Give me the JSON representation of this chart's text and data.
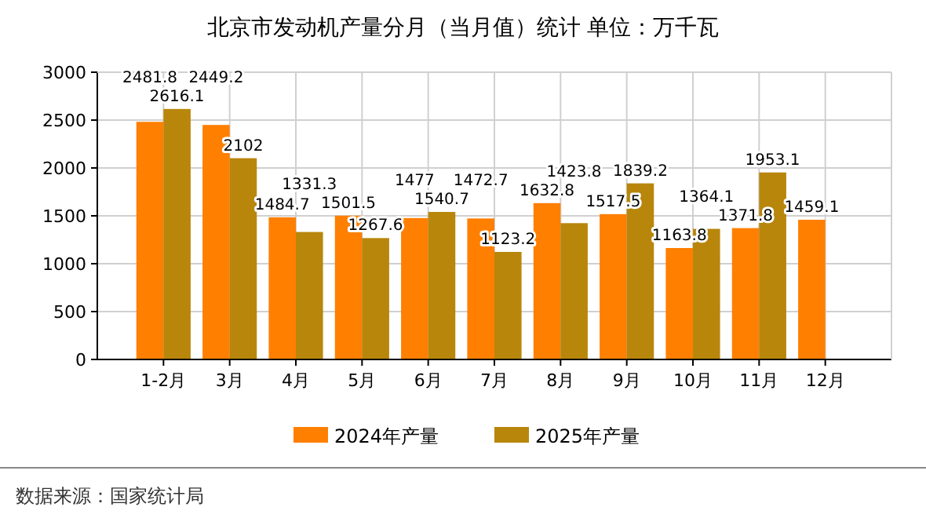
{
  "chart_data": {
    "type": "bar",
    "title": "北京市发动机产量分月（当月值）统计 单位：万千瓦",
    "categories": [
      "1-2月",
      "3月",
      "4月",
      "5月",
      "6月",
      "7月",
      "8月",
      "9月",
      "10月",
      "11月",
      "12月"
    ],
    "series": [
      {
        "name": "2024年产量",
        "color": "#ff7f00",
        "values": [
          2481.8,
          2449.2,
          1484.7,
          1501.5,
          1477,
          1472.7,
          1632.8,
          1517.5,
          1163.8,
          1371.8,
          1459.1
        ]
      },
      {
        "name": "2025年产量",
        "color": "#b8860b",
        "values": [
          2616.1,
          2102,
          1331.3,
          1267.6,
          1540.7,
          1123.2,
          1423.8,
          1839.2,
          1364.1,
          1953.1,
          null
        ]
      }
    ],
    "ylim": [
      0,
      3000
    ],
    "yticks": [
      0,
      500,
      1000,
      1500,
      2000,
      2500,
      3000
    ],
    "grid": true,
    "legend": "bottom",
    "data_labels": true,
    "annotations": [
      "数据来源：国家统计局"
    ]
  }
}
